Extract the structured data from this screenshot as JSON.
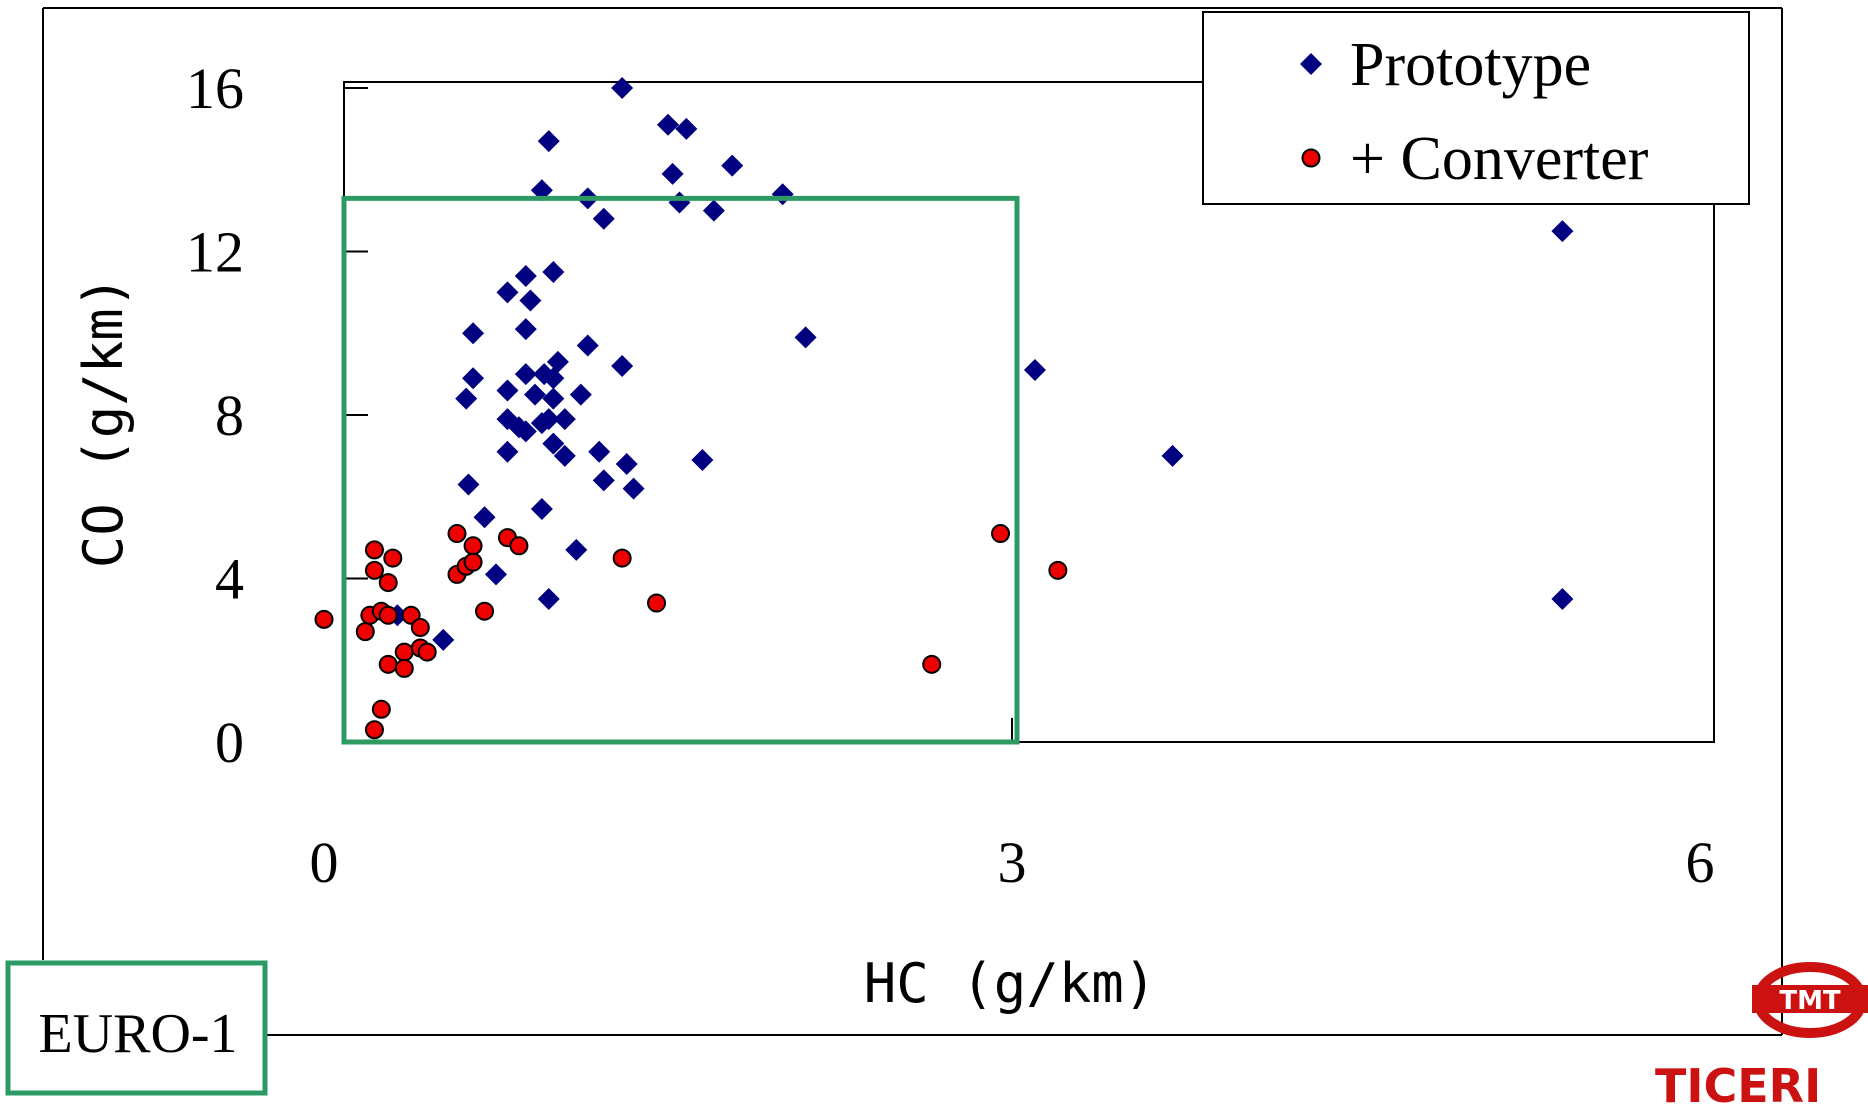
{
  "chart_data": {
    "type": "scatter",
    "title": "",
    "xlabel": "HC (g/km)",
    "ylabel": "CO (g/km)",
    "xlim": [
      0,
      6
    ],
    "ylim": [
      0,
      16
    ],
    "xticks": [
      "0",
      "3",
      "6"
    ],
    "yticks": [
      "0",
      "4",
      "8",
      "12",
      "16"
    ],
    "x_tick_values": [
      0,
      3,
      6
    ],
    "y_tick_values": [
      0,
      4,
      8,
      12,
      16
    ],
    "grid": false,
    "legend_position": "top-right",
    "series": [
      {
        "name": "Prototype",
        "marker": "diamond",
        "color": "#000080",
        "points": [
          [
            1.3,
            16.0
          ],
          [
            1.5,
            15.1
          ],
          [
            1.58,
            15.0
          ],
          [
            0.98,
            14.7
          ],
          [
            1.52,
            13.9
          ],
          [
            1.78,
            14.1
          ],
          [
            0.95,
            13.5
          ],
          [
            1.15,
            13.3
          ],
          [
            1.55,
            13.2
          ],
          [
            1.7,
            13.0
          ],
          [
            1.22,
            12.8
          ],
          [
            2.0,
            13.4
          ],
          [
            5.4,
            12.5
          ],
          [
            0.88,
            11.4
          ],
          [
            1.0,
            11.5
          ],
          [
            0.8,
            11.0
          ],
          [
            0.9,
            10.8
          ],
          [
            0.88,
            10.1
          ],
          [
            0.65,
            10.0
          ],
          [
            2.1,
            9.9
          ],
          [
            1.15,
            9.7
          ],
          [
            1.3,
            9.2
          ],
          [
            3.1,
            9.1
          ],
          [
            1.02,
            9.3
          ],
          [
            0.88,
            9.0
          ],
          [
            0.96,
            9.0
          ],
          [
            1.0,
            8.9
          ],
          [
            0.65,
            8.9
          ],
          [
            0.8,
            8.6
          ],
          [
            0.92,
            8.5
          ],
          [
            1.0,
            8.4
          ],
          [
            1.12,
            8.5
          ],
          [
            0.62,
            8.4
          ],
          [
            0.8,
            7.9
          ],
          [
            0.85,
            7.7
          ],
          [
            0.95,
            7.8
          ],
          [
            0.98,
            7.9
          ],
          [
            1.05,
            7.9
          ],
          [
            0.88,
            7.6
          ],
          [
            1.0,
            7.3
          ],
          [
            1.05,
            7.0
          ],
          [
            0.8,
            7.1
          ],
          [
            1.2,
            7.1
          ],
          [
            1.32,
            6.8
          ],
          [
            1.65,
            6.9
          ],
          [
            3.7,
            7.0
          ],
          [
            0.63,
            6.3
          ],
          [
            1.22,
            6.4
          ],
          [
            1.35,
            6.2
          ],
          [
            0.95,
            5.7
          ],
          [
            0.7,
            5.5
          ],
          [
            1.1,
            4.7
          ],
          [
            0.75,
            4.1
          ],
          [
            0.98,
            3.5
          ],
          [
            5.4,
            3.5
          ],
          [
            0.32,
            3.1
          ],
          [
            0.52,
            2.5
          ]
        ]
      },
      {
        "name": "+ Converter",
        "marker": "circle",
        "color": "#ee0000",
        "points": [
          [
            0.22,
            4.7
          ],
          [
            0.3,
            4.5
          ],
          [
            0.22,
            4.2
          ],
          [
            0.28,
            3.9
          ],
          [
            0.2,
            3.1
          ],
          [
            0.25,
            3.2
          ],
          [
            0.28,
            3.1
          ],
          [
            0.18,
            2.7
          ],
          [
            0.38,
            3.1
          ],
          [
            0.35,
            2.2
          ],
          [
            0.42,
            2.8
          ],
          [
            0.28,
            1.9
          ],
          [
            0.35,
            1.8
          ],
          [
            0.42,
            2.3
          ],
          [
            0.45,
            2.2
          ],
          [
            0.0,
            3.0
          ],
          [
            0.25,
            0.8
          ],
          [
            0.22,
            0.3
          ],
          [
            0.58,
            5.1
          ],
          [
            0.65,
            4.8
          ],
          [
            0.58,
            4.1
          ],
          [
            0.62,
            4.3
          ],
          [
            0.65,
            4.4
          ],
          [
            0.8,
            5.0
          ],
          [
            0.85,
            4.8
          ],
          [
            0.7,
            3.2
          ],
          [
            1.3,
            4.5
          ],
          [
            1.45,
            3.4
          ],
          [
            2.65,
            1.9
          ],
          [
            2.95,
            5.1
          ],
          [
            3.2,
            4.2
          ]
        ]
      }
    ]
  },
  "annotations": {
    "euro_box_label": "EURO-1",
    "euro_box_color": "#2e9a63",
    "euro_limits": {
      "hc": 3.0,
      "co": 13.3
    }
  },
  "logo": {
    "name": "tmt-logo",
    "emblem_text": "TMT",
    "caption": "TICERI",
    "color": "#cc1111"
  }
}
